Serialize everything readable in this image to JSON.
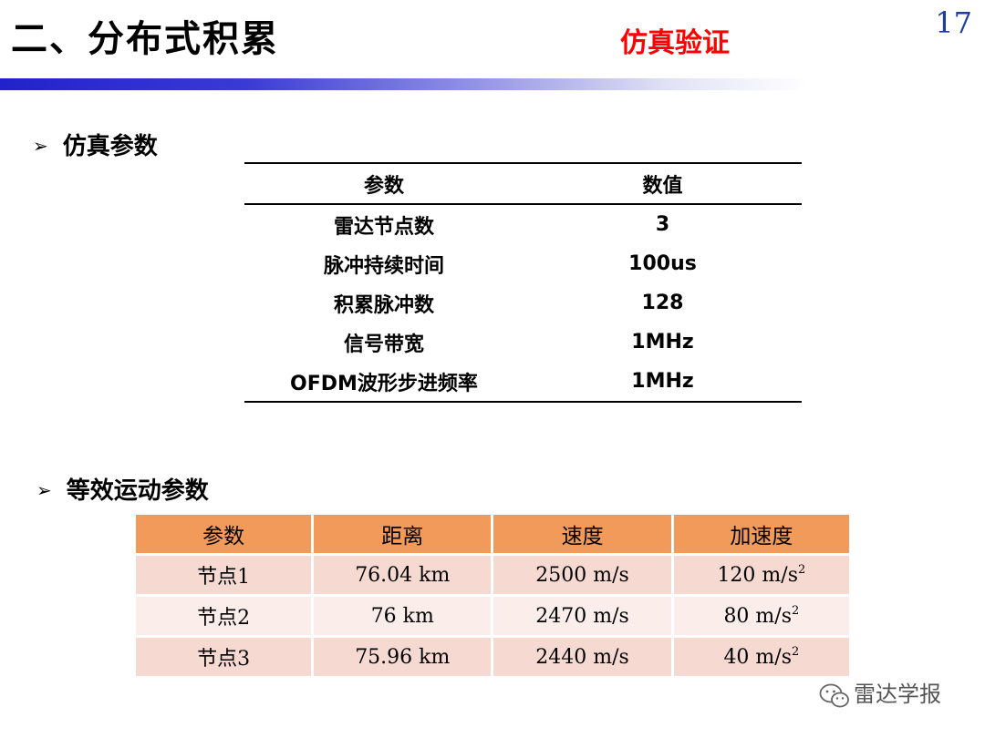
{
  "header": {
    "title": "二、分布式积累",
    "section": "仿真验证",
    "page_number": "17"
  },
  "section1": {
    "heading": "仿真参数",
    "table": {
      "headers": [
        "参数",
        "数值"
      ],
      "rows": [
        [
          "雷达节点数",
          "3"
        ],
        [
          "脉冲持续时间",
          "100us"
        ],
        [
          "积累脉冲数",
          "128"
        ],
        [
          "信号带宽",
          "1MHz"
        ],
        [
          "OFDM波形步进频率",
          "1MHz"
        ]
      ]
    }
  },
  "section2": {
    "heading": "等效运动参数",
    "table": {
      "headers": [
        "参数",
        "距离",
        "速度",
        "加速度"
      ],
      "rows": [
        {
          "node": "节点1",
          "range": "76.04 km",
          "velocity": "2500 m/s",
          "accel": "120 m/s",
          "accel_exp": "2"
        },
        {
          "node": "节点2",
          "range": "76 km",
          "velocity": "2470 m/s",
          "accel": "80 m/s",
          "accel_exp": "2"
        },
        {
          "node": "节点3",
          "range": "75.96 km",
          "velocity": "2440 m/s",
          "accel": "40 m/s",
          "accel_exp": "2"
        }
      ]
    }
  },
  "watermark": {
    "text": "雷达学报",
    "icon": "wechat-icon"
  },
  "colors": {
    "section_tag": "#ff0000",
    "page_number": "#1d3ca6",
    "header_bar": "#2222cc",
    "table_header": "#f29a5a",
    "table_row_dark": "#f6dad2",
    "table_row_light": "#fbeeea"
  }
}
